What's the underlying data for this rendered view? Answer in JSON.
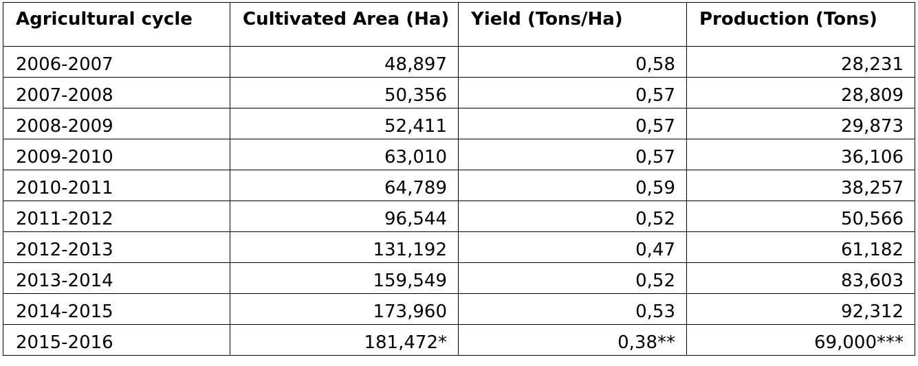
{
  "table": {
    "headers": [
      "Agricultural cycle",
      "Cultivated Area (Ha)",
      "Yield (Tons/Ha)",
      "Production (Tons)"
    ],
    "rows": [
      [
        "2006-2007",
        "48,897",
        "0,58",
        "28,231"
      ],
      [
        "2007-2008",
        "50,356",
        "0,57",
        "28,809"
      ],
      [
        "2008-2009",
        "52,411",
        "0,57",
        "29,873"
      ],
      [
        "2009-2010",
        "63,010",
        "0,57",
        "36,106"
      ],
      [
        "2010-2011",
        "64,789",
        "0,59",
        "38,257"
      ],
      [
        "2011-2012",
        "96,544",
        "0,52",
        "50,566"
      ],
      [
        "2012-2013",
        "131,192",
        "0,47",
        "61,182"
      ],
      [
        "2013-2014",
        "159,549",
        "0,52",
        "83,603"
      ],
      [
        "2014-2015",
        "173,960",
        "0,53",
        "92,312"
      ],
      [
        "2015-2016",
        "181,472*",
        "0,38**",
        "69,000***"
      ]
    ]
  }
}
